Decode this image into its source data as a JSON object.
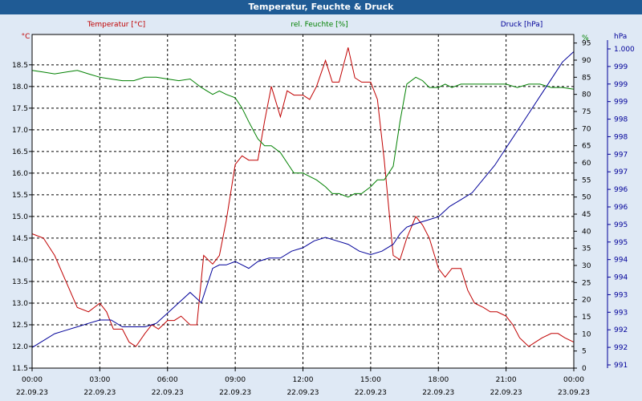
{
  "chart_data": {
    "type": "line",
    "title": "Temperatur, Feuchte & Druck",
    "x_ticks": [
      {
        "time": "00:00",
        "date": "22.09.23"
      },
      {
        "time": "03:00",
        "date": "22.09.23"
      },
      {
        "time": "06:00",
        "date": "22.09.23"
      },
      {
        "time": "09:00",
        "date": "22.09.23"
      },
      {
        "time": "12:00",
        "date": "22.09.23"
      },
      {
        "time": "15:00",
        "date": "22.09.23"
      },
      {
        "time": "18:00",
        "date": "22.09.23"
      },
      {
        "time": "21:00",
        "date": "22.09.23"
      },
      {
        "time": "00:00",
        "date": "23.09.23"
      }
    ],
    "xlim": [
      0,
      24
    ],
    "axes": {
      "temperature": {
        "label": "Temperatur [°C]",
        "unit": "°C",
        "color": "#c00000",
        "ylim": [
          11.5,
          19.2
        ],
        "ticks": [
          "11.5",
          "12.0",
          "12.5",
          "13.0",
          "13.5",
          "14.0",
          "14.5",
          "15.0",
          "15.5",
          "16.0",
          "16.5",
          "17.0",
          "17.5",
          "18.0",
          "18.5"
        ]
      },
      "humidity": {
        "label": "rel. Feuchte [%]",
        "unit": "%",
        "color": "#008000",
        "ylim": [
          0,
          97.5
        ],
        "ticks": [
          "0",
          "5",
          "10",
          "15",
          "20",
          "25",
          "30",
          "35",
          "40",
          "45",
          "50",
          "55",
          "60",
          "65",
          "70",
          "75",
          "80",
          "85",
          "90",
          "95",
          "%"
        ]
      },
      "pressure": {
        "label": "Druck [hPa]",
        "unit": "hPa",
        "color": "#000099",
        "ylim": [
          990.9,
          1000.6
        ],
        "ticks": [
          "991",
          "992",
          "992",
          "993",
          "993",
          "994",
          "994",
          "995",
          "995",
          "996",
          "996",
          "997",
          "997",
          "998",
          "998",
          "999",
          "999",
          "999",
          "1.000",
          "hPa"
        ]
      }
    },
    "series": [
      {
        "name": "Temperatur",
        "axis": "temperature",
        "x": [
          0,
          0.5,
          1,
          1.5,
          2,
          2.5,
          3,
          3.3,
          3.6,
          4,
          4.3,
          4.6,
          5,
          5.3,
          5.6,
          6,
          6.3,
          6.6,
          7,
          7.3,
          7.6,
          8,
          8.3,
          8.6,
          9,
          9.3,
          9.6,
          10,
          10.3,
          10.6,
          11,
          11.3,
          11.6,
          12,
          12.3,
          12.6,
          13,
          13.3,
          13.6,
          14,
          14.3,
          14.6,
          15,
          15.3,
          15.6,
          16,
          16.3,
          16.6,
          17,
          17.3,
          17.6,
          18,
          18.3,
          18.6,
          19,
          19.3,
          19.6,
          20,
          20.3,
          20.6,
          21,
          21.3,
          21.6,
          22,
          22.3,
          22.6,
          23,
          23.3,
          23.6,
          24
        ],
        "values": [
          14.6,
          14.5,
          14.1,
          13.5,
          12.9,
          12.8,
          13.0,
          12.8,
          12.4,
          12.4,
          12.1,
          12.0,
          12.3,
          12.5,
          12.4,
          12.6,
          12.6,
          12.7,
          12.5,
          12.5,
          14.1,
          13.9,
          14.1,
          14.9,
          16.2,
          16.4,
          16.3,
          16.3,
          17.2,
          18.0,
          17.3,
          17.9,
          17.8,
          17.8,
          17.7,
          18.0,
          18.6,
          18.1,
          18.1,
          18.9,
          18.2,
          18.1,
          18.1,
          17.7,
          16.3,
          14.1,
          14.0,
          14.5,
          15.0,
          14.8,
          14.5,
          13.8,
          13.6,
          13.8,
          13.8,
          13.3,
          13.0,
          12.9,
          12.8,
          12.8,
          12.7,
          12.5,
          12.2,
          12.0,
          12.1,
          12.2,
          12.3,
          12.3,
          12.2,
          12.1
        ]
      },
      {
        "name": "rel. Feuchte",
        "axis": "humidity",
        "x": [
          0,
          0.5,
          1,
          1.5,
          2,
          2.5,
          3,
          3.5,
          4,
          4.5,
          5,
          5.5,
          6,
          6.5,
          7,
          7.5,
          8,
          8.3,
          8.6,
          9,
          9.3,
          9.6,
          10,
          10.3,
          10.6,
          11,
          11.3,
          11.6,
          12,
          12.3,
          12.6,
          13,
          13.3,
          13.6,
          14,
          14.3,
          14.6,
          15,
          15.3,
          15.6,
          16,
          16.3,
          16.6,
          17,
          17.3,
          17.6,
          18,
          18.3,
          18.6,
          19,
          19.5,
          20,
          20.5,
          21,
          21.5,
          22,
          22.5,
          23,
          23.5,
          24
        ],
        "values": [
          87,
          86.5,
          86,
          86.5,
          87,
          86,
          85,
          84.5,
          84,
          84,
          85,
          85,
          84.5,
          84,
          84.5,
          82,
          80,
          81,
          80,
          79,
          76,
          72,
          67,
          65,
          65,
          63,
          60,
          57,
          57,
          56,
          55,
          53,
          51,
          51,
          50,
          51,
          51,
          53,
          55,
          55,
          59,
          72,
          83,
          85,
          84,
          82,
          82,
          83,
          82,
          83,
          83,
          83,
          83,
          83,
          82,
          83,
          83,
          82,
          82,
          81.5
        ]
      },
      {
        "name": "Druck",
        "axis": "pressure",
        "x": [
          0,
          0.5,
          1,
          1.5,
          2,
          2.5,
          3,
          3.5,
          4,
          4.5,
          5,
          5.5,
          6,
          6.5,
          7,
          7.5,
          8,
          8.3,
          8.6,
          9,
          9.3,
          9.6,
          10,
          10.5,
          11,
          11.5,
          12,
          12.5,
          13,
          13.5,
          14,
          14.5,
          15,
          15.5,
          16,
          16.3,
          16.6,
          17,
          17.5,
          18,
          18.5,
          19,
          19.5,
          20,
          20.5,
          21,
          21.5,
          22,
          22.5,
          23,
          23.5,
          24
        ],
        "values": [
          991.5,
          991.7,
          991.9,
          992.0,
          992.1,
          992.2,
          992.3,
          992.3,
          992.1,
          992.1,
          992.1,
          992.2,
          992.5,
          992.8,
          993.1,
          992.8,
          993.8,
          993.9,
          993.9,
          994.0,
          993.9,
          993.8,
          994.0,
          994.1,
          994.1,
          994.3,
          994.4,
          994.6,
          994.7,
          994.6,
          994.5,
          994.3,
          994.2,
          994.3,
          994.5,
          994.8,
          995.0,
          995.1,
          995.2,
          995.3,
          995.6,
          995.8,
          996.0,
          996.4,
          996.8,
          997.3,
          997.8,
          998.3,
          998.8,
          999.3,
          999.8,
          1000.1
        ]
      }
    ]
  }
}
